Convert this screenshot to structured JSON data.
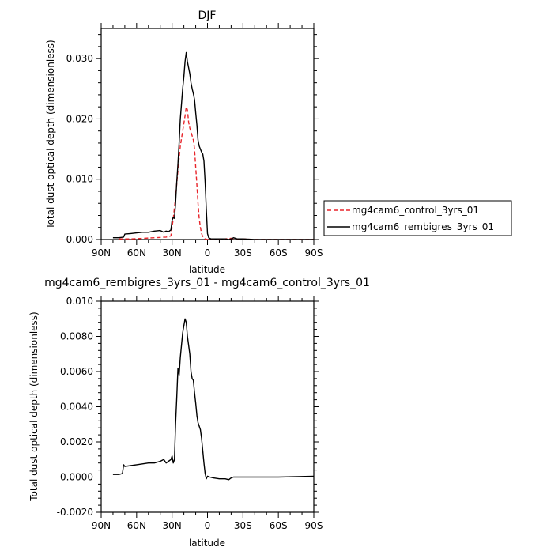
{
  "chart_data": [
    {
      "type": "line",
      "title": "DJF",
      "xlabel": "latitude",
      "ylabel": "Total dust optical depth (dimensionless)",
      "x_direction": "north-to-south",
      "xlim": [
        90,
        -90
      ],
      "ylim": [
        0.0,
        0.035
      ],
      "x_ticks": [
        {
          "value": 90,
          "label": "90N"
        },
        {
          "value": 60,
          "label": "60N"
        },
        {
          "value": 30,
          "label": "30N"
        },
        {
          "value": 0,
          "label": "0"
        },
        {
          "value": -30,
          "label": "30S"
        },
        {
          "value": -60,
          "label": "60S"
        },
        {
          "value": -90,
          "label": "90S"
        }
      ],
      "y_ticks": [
        {
          "value": 0.0,
          "label": "0.000"
        },
        {
          "value": 0.01,
          "label": "0.010"
        },
        {
          "value": 0.02,
          "label": "0.020"
        },
        {
          "value": 0.03,
          "label": "0.030"
        }
      ],
      "legend_position": "right",
      "series": [
        {
          "name": "mg4cam6_control_3yrs_01",
          "color": "#e8242a",
          "dash": "dashed",
          "x": [
            75,
            70,
            65,
            55,
            45,
            35,
            31,
            29,
            27,
            25,
            23,
            21,
            19,
            18,
            17,
            16,
            15,
            14,
            13,
            12,
            11,
            10,
            9,
            8,
            7,
            6,
            5,
            4,
            3,
            2,
            1,
            0,
            -2,
            -5,
            -10,
            -15,
            -20,
            -25,
            -30,
            -40,
            -60,
            -90
          ],
          "y": [
            0.0001,
            0.0001,
            0.0001,
            0.0002,
            0.0003,
            0.0004,
            0.0006,
            0.0035,
            0.007,
            0.0115,
            0.0155,
            0.018,
            0.0205,
            0.022,
            0.0215,
            0.0195,
            0.0185,
            0.0178,
            0.0172,
            0.0165,
            0.015,
            0.012,
            0.009,
            0.006,
            0.0035,
            0.002,
            0.001,
            0.0005,
            0.0002,
            0.0001,
            5e-05,
            0.0,
            0.0001,
            0.0001,
            0.0001,
            0.0001,
            0.0002,
            0.0001,
            0.0001,
            0.0,
            0.0,
            0.0
          ]
        },
        {
          "name": "mg4cam6_rembigres_3yrs_01",
          "color": "#000000",
          "dash": "solid",
          "x": [
            80,
            75,
            71,
            70,
            65,
            60,
            55,
            50,
            45,
            40,
            37,
            35,
            33,
            31,
            30,
            29,
            28,
            27,
            26,
            25,
            24,
            23,
            22,
            21,
            20,
            19,
            18,
            17,
            16,
            15,
            14,
            13,
            12,
            11,
            10,
            9,
            8,
            7,
            6,
            5,
            4,
            3,
            2,
            1,
            0,
            -1,
            -3,
            -5,
            -10,
            -15,
            -18,
            -20,
            -22,
            -25,
            -30,
            -40,
            -60,
            -90
          ],
          "y": [
            0.0003,
            0.0003,
            0.0004,
            0.0009,
            0.001,
            0.0011,
            0.0012,
            0.0012,
            0.0014,
            0.0015,
            0.0012,
            0.0014,
            0.0013,
            0.0016,
            0.0032,
            0.0037,
            0.0035,
            0.006,
            0.0095,
            0.0125,
            0.016,
            0.02,
            0.0225,
            0.025,
            0.027,
            0.0295,
            0.031,
            0.0295,
            0.0285,
            0.0275,
            0.026,
            0.025,
            0.0242,
            0.0232,
            0.021,
            0.019,
            0.0165,
            0.0155,
            0.015,
            0.0145,
            0.0142,
            0.013,
            0.0095,
            0.005,
            0.001,
            0.0003,
            0.0001,
            0.0001,
            0.0001,
            0.0001,
            0.0,
            0.0001,
            0.0003,
            0.0001,
            0.0001,
            0.0,
            0.0,
            0.0
          ]
        }
      ]
    },
    {
      "type": "line",
      "title": "mg4cam6_rembigres_3yrs_01 - mg4cam6_control_3yrs_01",
      "xlabel": "latitude",
      "ylabel": "Total dust optical depth (dimensionless)",
      "x_direction": "north-to-south",
      "xlim": [
        90,
        -90
      ],
      "ylim": [
        -0.002,
        0.01
      ],
      "x_ticks": [
        {
          "value": 90,
          "label": "90N"
        },
        {
          "value": 60,
          "label": "60N"
        },
        {
          "value": 30,
          "label": "30N"
        },
        {
          "value": 0,
          "label": "0"
        },
        {
          "value": -30,
          "label": "30S"
        },
        {
          "value": -60,
          "label": "60S"
        },
        {
          "value": -90,
          "label": "90S"
        }
      ],
      "y_ticks": [
        {
          "value": -0.002,
          "label": "-0.0020"
        },
        {
          "value": 0.0,
          "label": "0.0000"
        },
        {
          "value": 0.002,
          "label": "0.0020"
        },
        {
          "value": 0.004,
          "label": "0.0040"
        },
        {
          "value": 0.006,
          "label": "0.0060"
        },
        {
          "value": 0.008,
          "label": "0.0080"
        },
        {
          "value": 0.01,
          "label": "0.010"
        }
      ],
      "series": [
        {
          "color": "#000000",
          "dash": "solid",
          "x": [
            80,
            75,
            72,
            71,
            70,
            65,
            60,
            55,
            50,
            45,
            40,
            37,
            35,
            33,
            31,
            30,
            29,
            28,
            27,
            26,
            25,
            24,
            23,
            22,
            21,
            20,
            19,
            18,
            17,
            16,
            15,
            14,
            13,
            12,
            11,
            10,
            9,
            8,
            7,
            6,
            5,
            4,
            3,
            2,
            1,
            0,
            -2,
            -5,
            -10,
            -15,
            -18,
            -20,
            -22,
            -25,
            -30,
            -40,
            -60,
            -90
          ],
          "y": [
            0.00015,
            0.00015,
            0.0002,
            0.0007,
            0.0006,
            0.00065,
            0.0007,
            0.00075,
            0.0008,
            0.0008,
            0.0009,
            0.001,
            0.0008,
            0.0009,
            0.001,
            0.0012,
            0.0008,
            0.001,
            0.003,
            0.0045,
            0.0062,
            0.0058,
            0.0068,
            0.0075,
            0.0082,
            0.0086,
            0.009,
            0.0088,
            0.008,
            0.0075,
            0.007,
            0.006,
            0.0056,
            0.0055,
            0.0048,
            0.0042,
            0.0035,
            0.0031,
            0.0029,
            0.0027,
            0.0022,
            0.0015,
            0.0008,
            0.0002,
            -0.0001,
            5e-05,
            0.0,
            -5e-05,
            -0.0001,
            -0.0001,
            -0.00015,
            -5e-05,
            0.0,
            0.0,
            0.0,
            0.0,
            0.0,
            5e-05
          ]
        }
      ]
    }
  ]
}
